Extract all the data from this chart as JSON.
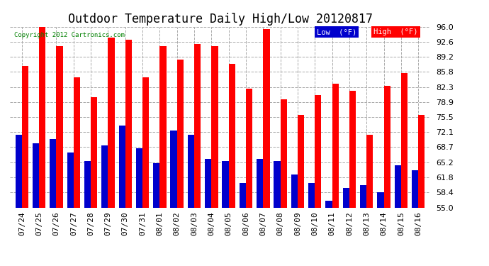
{
  "title": "Outdoor Temperature Daily High/Low 20120817",
  "copyright": "Copyright 2012 Cartronics.com",
  "legend_low": "Low  (°F)",
  "legend_high": "High  (°F)",
  "dates": [
    "07/24",
    "07/25",
    "07/26",
    "07/27",
    "07/28",
    "07/29",
    "07/30",
    "07/31",
    "08/01",
    "08/02",
    "08/03",
    "08/04",
    "08/05",
    "08/06",
    "08/07",
    "08/08",
    "08/09",
    "08/10",
    "08/11",
    "08/12",
    "08/13",
    "08/14",
    "08/15",
    "08/16"
  ],
  "highs": [
    87.0,
    96.0,
    91.5,
    84.5,
    80.0,
    93.5,
    93.0,
    84.5,
    91.5,
    88.5,
    92.0,
    91.5,
    87.5,
    82.0,
    95.5,
    79.5,
    76.0,
    80.5,
    83.0,
    81.5,
    71.5,
    82.5,
    85.5,
    76.0
  ],
  "lows": [
    71.5,
    69.5,
    70.5,
    67.5,
    65.5,
    69.0,
    73.5,
    68.5,
    65.0,
    72.5,
    71.5,
    66.0,
    65.5,
    60.5,
    66.0,
    65.5,
    62.5,
    60.5,
    56.5,
    59.5,
    60.0,
    58.5,
    64.5,
    63.5
  ],
  "high_color": "#ff0000",
  "low_color": "#0000cc",
  "background_color": "#ffffff",
  "plot_bg_color": "#ffffff",
  "grid_color": "#aaaaaa",
  "ytick_labels": [
    "55.0",
    "58.4",
    "61.8",
    "65.2",
    "68.7",
    "72.1",
    "75.5",
    "78.9",
    "82.3",
    "85.8",
    "89.2",
    "92.6",
    "96.0"
  ],
  "ytick_vals": [
    55.0,
    58.4,
    61.8,
    65.2,
    68.7,
    72.1,
    75.5,
    78.9,
    82.3,
    85.8,
    89.2,
    92.6,
    96.0
  ],
  "ymin": 55.0,
  "ymax": 96.0,
  "title_fontsize": 12,
  "tick_fontsize": 8,
  "bar_width": 0.38
}
